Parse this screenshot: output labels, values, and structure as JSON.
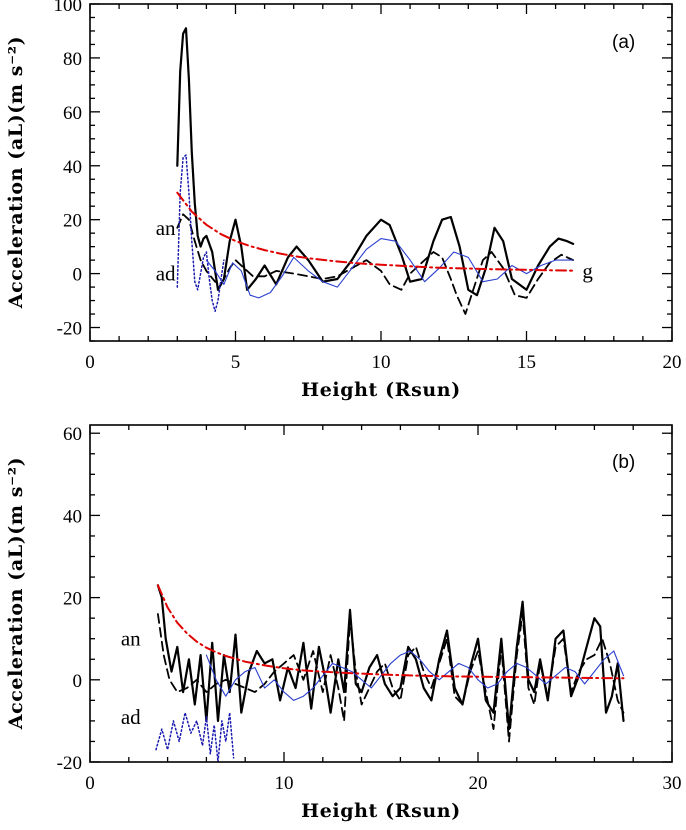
{
  "chart_data": [
    {
      "type": "line",
      "panel_label": "(a)",
      "xlabel": "Height (Rsun)",
      "ylabel": "Acceleration (aL)(m s⁻²)",
      "xlim": [
        0,
        20
      ],
      "ylim": [
        -25,
        100
      ],
      "xticks": [
        0,
        5,
        10,
        15,
        20
      ],
      "yticks": [
        -20,
        0,
        20,
        40,
        60,
        80,
        100
      ],
      "annotations": [
        {
          "text": "an",
          "x": 2.6,
          "y": 17
        },
        {
          "text": "ad",
          "x": 2.6,
          "y": 0
        },
        {
          "text": "g",
          "x": 17.1,
          "y": 1
        }
      ],
      "series": [
        {
          "name": "total acceleration (solid)",
          "color": "#000000",
          "style": "solid",
          "width": 2.2,
          "x": [
            3.0,
            3.1,
            3.2,
            3.3,
            3.4,
            3.5,
            3.6,
            3.7,
            3.8,
            3.9,
            4.0,
            4.2,
            4.4,
            4.6,
            4.8,
            5.0,
            5.2,
            5.4,
            5.7,
            6.0,
            6.4,
            6.8,
            7.1,
            7.5,
            8.0,
            8.5,
            9.0,
            9.5,
            10.0,
            10.3,
            10.7,
            11.0,
            11.4,
            11.8,
            12.1,
            12.4,
            12.7,
            13.0,
            13.3,
            13.6,
            13.9,
            14.2,
            14.5,
            15.0,
            15.4,
            15.8,
            16.1,
            16.4,
            16.6
          ],
          "y": [
            40,
            75,
            89,
            91,
            72,
            45,
            26,
            14,
            10,
            13,
            14,
            8,
            -6,
            -2,
            12,
            20,
            10,
            -6,
            -2,
            3,
            -4,
            6,
            10,
            5,
            -3,
            -2,
            5,
            14,
            20,
            18,
            7,
            -3,
            -2,
            12,
            20,
            21,
            10,
            -6,
            -8,
            2,
            17,
            12,
            -2,
            -6,
            3,
            10,
            13,
            12,
            11
          ]
        },
        {
          "name": "an (dashed)",
          "color": "#000000",
          "style": "dashed",
          "width": 1.8,
          "x": [
            3.0,
            3.2,
            3.4,
            3.6,
            3.8,
            4.0,
            4.3,
            4.5,
            4.8,
            5.0,
            5.3,
            5.6,
            6.0,
            6.4,
            7.0,
            7.5,
            8.0,
            8.5,
            9.0,
            9.5,
            10.0,
            10.3,
            10.7,
            11.0,
            11.4,
            11.8,
            12.1,
            12.4,
            12.6,
            12.9,
            13.2,
            13.5,
            13.8,
            14.2,
            14.6,
            15.0,
            15.4,
            15.8,
            16.2,
            16.6
          ],
          "y": [
            17,
            22,
            20,
            12,
            5,
            1,
            -3,
            -4,
            2,
            5,
            2,
            -1,
            -1,
            1,
            0,
            -1,
            -2,
            -1,
            2,
            5,
            1,
            -4,
            -6,
            0,
            4,
            8,
            6,
            -2,
            -8,
            -15,
            -5,
            5,
            8,
            2,
            -8,
            -9,
            -2,
            4,
            7,
            5
          ]
        },
        {
          "name": "ad (dotted blue)",
          "color": "#1a1ab0",
          "style": "dotted",
          "width": 1.5,
          "x": [
            3.0,
            3.1,
            3.2,
            3.3,
            3.4,
            3.5,
            3.6,
            3.7,
            3.8,
            3.9,
            4.0,
            4.1,
            4.2,
            4.3,
            4.4,
            4.5,
            4.6
          ],
          "y": [
            -5,
            30,
            43,
            44,
            30,
            12,
            -3,
            -6,
            0,
            6,
            8,
            -2,
            -10,
            -14,
            -10,
            -2,
            5
          ]
        },
        {
          "name": "blue solid",
          "color": "#2a3fd0",
          "style": "solid",
          "width": 1.1,
          "x": [
            4.0,
            4.3,
            4.6,
            4.9,
            5.2,
            5.5,
            5.8,
            6.2,
            6.6,
            7.0,
            7.5,
            8.0,
            8.5,
            9.0,
            9.5,
            10.0,
            10.5,
            11.0,
            11.5,
            12.0,
            12.5,
            13.0,
            13.5,
            14.0,
            14.5,
            15.0,
            15.5,
            16.0,
            16.6
          ],
          "y": [
            5,
            1,
            -4,
            4,
            1,
            -8,
            -9,
            -7,
            -1,
            6,
            1,
            -3,
            -5,
            2,
            9,
            13,
            12,
            5,
            -3,
            2,
            8,
            6,
            -3,
            -2,
            3,
            0,
            3,
            5,
            5
          ]
        },
        {
          "name": "g (dash-dot red)",
          "color": "#e00000",
          "style": "dashdot",
          "width": 2.0,
          "x": [
            3.0,
            3.5,
            4.0,
            4.5,
            5.0,
            5.5,
            6.0,
            6.5,
            7.0,
            7.5,
            8.0,
            8.5,
            9.0,
            9.5,
            10.0,
            10.5,
            11.0,
            11.5,
            12.0,
            12.5,
            13.0,
            13.5,
            14.0,
            14.5,
            15.0,
            15.5,
            16.0,
            16.6
          ],
          "y": [
            30,
            23.0,
            18.1,
            14.6,
            12.1,
            10.2,
            8.7,
            7.5,
            6.5,
            5.7,
            5.1,
            4.5,
            4.0,
            3.6,
            3.3,
            3.0,
            2.7,
            2.4,
            2.2,
            2.0,
            1.9,
            1.7,
            1.6,
            1.5,
            1.4,
            1.3,
            1.2,
            1.1
          ]
        }
      ]
    },
    {
      "type": "line",
      "panel_label": "(b)",
      "xlabel": "Height (Rsun)",
      "ylabel": "Acceleration (aL)(m s⁻²)",
      "xlim": [
        0,
        30
      ],
      "ylim": [
        -20,
        62
      ],
      "xticks": [
        0,
        10,
        20,
        30
      ],
      "yticks": [
        -20,
        0,
        20,
        40,
        60
      ],
      "annotations": [
        {
          "text": "an",
          "x": 2.1,
          "y": 10
        },
        {
          "text": "ad",
          "x": 2.1,
          "y": -9
        }
      ],
      "series": [
        {
          "name": "total acceleration (solid)",
          "color": "#000000",
          "style": "solid",
          "width": 2.2,
          "x": [
            3.5,
            3.7,
            3.9,
            4.2,
            4.5,
            4.8,
            5.1,
            5.4,
            5.7,
            6.0,
            6.3,
            6.6,
            6.9,
            7.2,
            7.5,
            7.8,
            8.2,
            8.6,
            9.0,
            9.4,
            9.8,
            10.2,
            10.6,
            11.0,
            11.4,
            11.8,
            12.1,
            12.4,
            12.8,
            13.1,
            13.4,
            13.7,
            14.0,
            14.4,
            14.8,
            15.2,
            15.6,
            16.0,
            16.4,
            16.8,
            17.2,
            17.6,
            18.0,
            18.4,
            18.8,
            19.2,
            19.6,
            20.0,
            20.4,
            20.8,
            21.2,
            21.6,
            22.0,
            22.3,
            22.6,
            22.9,
            23.2,
            23.6,
            24.0,
            24.4,
            24.8,
            25.2,
            25.6,
            26.0,
            26.3,
            26.6,
            26.9,
            27.2,
            27.5
          ],
          "y": [
            23,
            20,
            10,
            2,
            8,
            -3,
            5,
            -6,
            6,
            -10,
            9,
            -10,
            6,
            -3,
            11,
            -8,
            2,
            7,
            4,
            5,
            -5,
            3,
            -2,
            9,
            -7,
            8,
            1,
            -8,
            5,
            -3,
            17,
            -1,
            -3,
            3,
            6,
            -1,
            -4,
            -2,
            8,
            5,
            -2,
            -5,
            5,
            12,
            -2,
            -6,
            3,
            10,
            -5,
            -8,
            10,
            -12,
            8,
            19,
            0,
            -3,
            5,
            -5,
            10,
            12,
            -4,
            1,
            8,
            15,
            13,
            -8,
            -4,
            4,
            -10
          ]
        },
        {
          "name": "an (dashed)",
          "color": "#000000",
          "style": "dashed",
          "width": 1.8,
          "x": [
            3.5,
            3.8,
            4.1,
            4.5,
            5.0,
            5.5,
            6.0,
            6.5,
            7.0,
            7.5,
            8.0,
            8.5,
            9.0,
            9.5,
            10.0,
            10.5,
            11.0,
            11.5,
            12.0,
            12.4,
            12.8,
            13.1,
            13.4,
            13.7,
            14.0,
            14.4,
            14.8,
            15.2,
            15.6,
            16.0,
            16.4,
            16.8,
            17.2,
            17.6,
            18.0,
            18.4,
            18.8,
            19.2,
            19.6,
            20.0,
            20.4,
            20.8,
            21.2,
            21.6,
            22.0,
            22.3,
            22.6,
            22.9,
            23.2,
            23.6,
            24.0,
            24.4,
            24.8,
            25.2,
            25.6,
            26.0,
            26.4,
            26.8,
            27.2,
            27.5
          ],
          "y": [
            16,
            6,
            0,
            -3,
            -2,
            0,
            -3,
            -1,
            0,
            -1,
            -2,
            -3,
            -1,
            2,
            4,
            6,
            0,
            7,
            -3,
            6,
            -2,
            -10,
            15,
            2,
            -6,
            -2,
            2,
            4,
            -2,
            -5,
            6,
            8,
            2,
            -2,
            4,
            10,
            -4,
            -6,
            2,
            7,
            -3,
            -12,
            8,
            -15,
            6,
            16,
            -2,
            -6,
            4,
            -4,
            8,
            10,
            -3,
            2,
            5,
            6,
            10,
            4,
            -5,
            -8
          ]
        },
        {
          "name": "ad (dotted blue)",
          "color": "#1a1ab0",
          "style": "dotted",
          "width": 1.5,
          "x": [
            3.4,
            3.7,
            4.0,
            4.3,
            4.6,
            4.9,
            5.2,
            5.5,
            5.8,
            6.0,
            6.2,
            6.4,
            6.6,
            6.8,
            7.0,
            7.2,
            7.4
          ],
          "y": [
            -17,
            -12,
            -17,
            -10,
            -15,
            -8,
            -13,
            -10,
            -16,
            -9,
            -18,
            -11,
            -20,
            -10,
            -15,
            -8,
            -19
          ]
        },
        {
          "name": "blue solid",
          "color": "#2a3fd0",
          "style": "solid",
          "width": 1.1,
          "x": [
            6.0,
            6.5,
            7.0,
            7.5,
            8.0,
            8.5,
            9.0,
            9.5,
            10.0,
            10.5,
            11.0,
            11.5,
            12.0,
            12.5,
            13.0,
            13.5,
            14.0,
            14.5,
            15.0,
            15.5,
            16.0,
            16.5,
            17.0,
            17.5,
            18.0,
            18.5,
            19.0,
            19.5,
            20.0,
            20.5,
            21.0,
            21.5,
            22.0,
            22.5,
            23.0,
            23.5,
            24.0,
            24.5,
            25.0,
            25.5,
            26.0,
            26.5,
            27.0,
            27.5
          ],
          "y": [
            6,
            0,
            -4,
            0,
            2,
            3,
            -2,
            0,
            -3,
            -5,
            -4,
            -2,
            1,
            4,
            3,
            2,
            0,
            -2,
            1,
            4,
            6,
            7,
            5,
            2,
            0,
            2,
            4,
            3,
            0,
            -2,
            -1,
            2,
            4,
            3,
            1,
            -1,
            1,
            3,
            2,
            -1,
            2,
            5,
            7,
            1
          ]
        },
        {
          "name": "g (dash-dot red)",
          "color": "#e00000",
          "style": "dashdot",
          "width": 2.0,
          "x": [
            3.5,
            4.0,
            4.5,
            5.0,
            5.5,
            6.0,
            6.5,
            7.0,
            7.5,
            8.0,
            9.0,
            10.0,
            11.0,
            12.0,
            13.0,
            14.0,
            15.0,
            16.0,
            17.0,
            18.0,
            19.0,
            20.0,
            21.0,
            22.0,
            23.0,
            24.0,
            25.0,
            26.0,
            27.0,
            27.5
          ],
          "y": [
            23,
            17.6,
            13.9,
            11.3,
            9.3,
            7.8,
            6.7,
            5.8,
            5.1,
            4.4,
            3.5,
            2.8,
            2.3,
            2.0,
            1.7,
            1.5,
            1.3,
            1.15,
            1.0,
            0.9,
            0.8,
            0.75,
            0.7,
            0.65,
            0.6,
            0.55,
            0.5,
            0.45,
            0.4,
            0.4
          ]
        }
      ]
    }
  ]
}
